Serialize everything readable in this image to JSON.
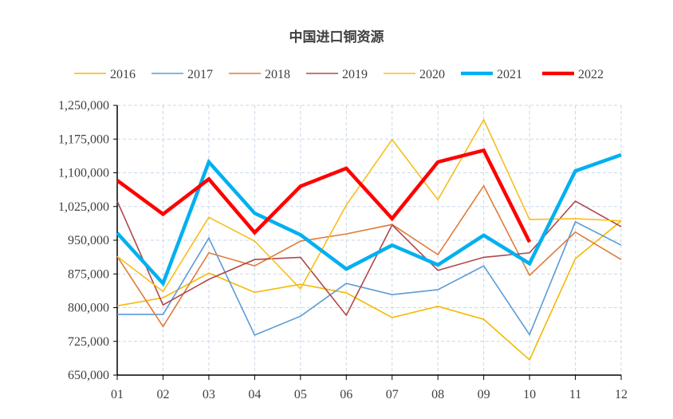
{
  "chart_data": {
    "type": "line",
    "title": "中国进口铜资源",
    "xlabel": "",
    "ylabel": "",
    "categories": [
      "01",
      "02",
      "03",
      "04",
      "05",
      "06",
      "07",
      "08",
      "09",
      "10",
      "11",
      "12"
    ],
    "ylim": [
      650000,
      1250000
    ],
    "yticks": [
      650000,
      725000,
      800000,
      875000,
      950000,
      1025000,
      1100000,
      1175000,
      1250000
    ],
    "ytick_labels": [
      "650,000",
      "725,000",
      "800,000",
      "875,000",
      "950,000",
      "1,025,000",
      "1,100,000",
      "1,175,000",
      "1,250,000"
    ],
    "grid": true,
    "legend": "top",
    "series": [
      {
        "name": "2016",
        "color": "#F5B800",
        "width": 1.6,
        "values": [
          804000,
          822000,
          877000,
          834000,
          852000,
          833000,
          778000,
          803000,
          774000,
          684000,
          909000,
          993000
        ]
      },
      {
        "name": "2017",
        "color": "#5B9BD5",
        "width": 1.6,
        "values": [
          785000,
          785000,
          955000,
          739000,
          781000,
          854000,
          829000,
          840000,
          893000,
          740000,
          991000,
          939000
        ]
      },
      {
        "name": "2018",
        "color": "#E07B39",
        "width": 1.6,
        "values": [
          914000,
          758000,
          922000,
          893000,
          948000,
          964000,
          985000,
          918000,
          1071000,
          872000,
          968000,
          907000
        ]
      },
      {
        "name": "2019",
        "color": "#B0484A",
        "width": 1.6,
        "values": [
          1037000,
          806000,
          863000,
          907000,
          912000,
          783000,
          984000,
          883000,
          912000,
          922000,
          1037000,
          980000
        ]
      },
      {
        "name": "2020",
        "color": "#F7BE1E",
        "width": 1.6,
        "values": [
          914000,
          836000,
          1001000,
          948000,
          842000,
          1028000,
          1174000,
          1040000,
          1218000,
          996000,
          998000,
          993000
        ]
      },
      {
        "name": "2021",
        "color": "#00B0F0",
        "width": 4.5,
        "values": [
          966000,
          854000,
          1124000,
          1010000,
          962000,
          886000,
          939000,
          895000,
          961000,
          898000,
          1104000,
          1140000
        ]
      },
      {
        "name": "2022",
        "color": "#FF0000",
        "width": 4.5,
        "values": [
          1083000,
          1008000,
          1086000,
          967000,
          1070000,
          1110000,
          998000,
          1124000,
          1150000,
          946000,
          null,
          null
        ]
      }
    ]
  }
}
